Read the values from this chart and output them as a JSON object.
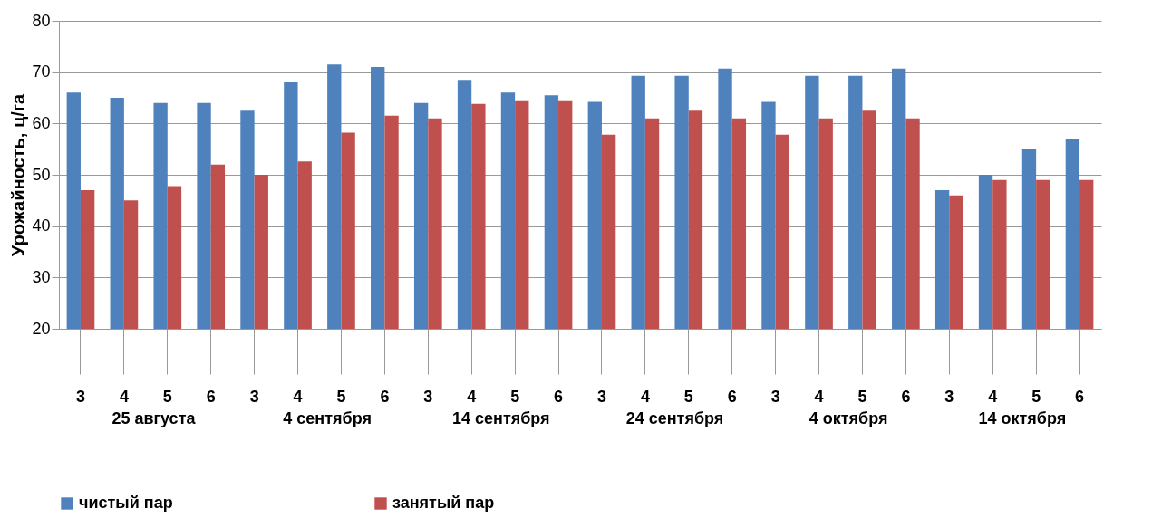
{
  "chart_data": {
    "type": "bar",
    "ylabel": "Урожайность, ц/га",
    "categories": [
      "3",
      "4",
      "5",
      "6",
      "3",
      "4",
      "5",
      "6",
      "3",
      "4",
      "5",
      "6",
      "3",
      "4",
      "5",
      "6",
      "3",
      "4",
      "5",
      "6",
      "3",
      "4",
      "5",
      "6"
    ],
    "series": [
      {
        "name": "чистый пар",
        "color": "#4f81bd",
        "values": [
          66,
          65,
          64,
          64,
          62.5,
          68,
          71.5,
          71,
          64,
          68.5,
          66,
          65.5,
          64.2,
          69.3,
          69.3,
          70.7,
          64.2,
          69.3,
          69.3,
          70.7,
          47,
          50,
          55,
          57
        ]
      },
      {
        "name": "занятый пар",
        "color": "#c0504d",
        "values": [
          47,
          45,
          47.8,
          52,
          50,
          52.6,
          58.2,
          61.5,
          61,
          63.8,
          64.5,
          64.5,
          57.8,
          61,
          62.5,
          61,
          57.8,
          61,
          62.5,
          61,
          46,
          49,
          49,
          49
        ]
      }
    ],
    "annotations": [
      "25 августа",
      "4 сентября",
      "14 сентября",
      "24 сентября",
      "4 октября",
      "14 октября"
    ],
    "ylim": [
      20,
      80
    ],
    "yticks": [
      20,
      30,
      40,
      50,
      60,
      70,
      80
    ],
    "grid": "y",
    "legend": "bottom"
  }
}
